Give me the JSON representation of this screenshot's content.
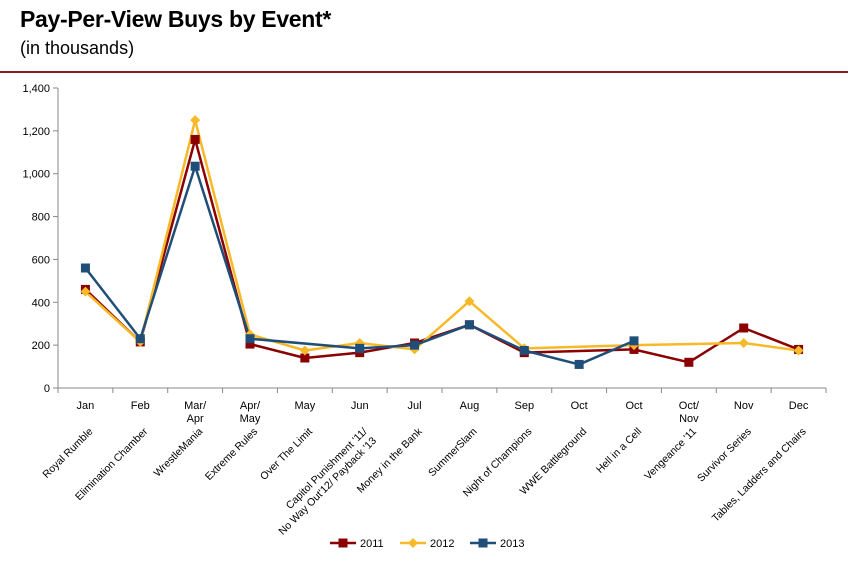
{
  "title": "Pay-Per-View Buys by Event*",
  "subtitle": "(in thousands)",
  "colors": {
    "2011": "#8b0000",
    "2012": "#f7b928",
    "2013": "#1f4e79",
    "rule": "#8b1a1a"
  },
  "chart_data": {
    "type": "line",
    "title": "Pay-Per-View Buys by Event*",
    "subtitle": "(in thousands)",
    "ylim": [
      0,
      1400
    ],
    "yticks": [
      "0",
      "200",
      "400",
      "600",
      "800",
      "1,000",
      "1,200",
      "1,400"
    ],
    "ytick_values": [
      0,
      200,
      400,
      600,
      800,
      1000,
      1200,
      1400
    ],
    "months": [
      [
        "Jan"
      ],
      [
        "Feb"
      ],
      [
        "Mar/",
        "Apr"
      ],
      [
        "Apr/",
        "May"
      ],
      [
        "May"
      ],
      [
        "Jun"
      ],
      [
        "Jul"
      ],
      [
        "Aug"
      ],
      [
        "Sep"
      ],
      [
        "Oct"
      ],
      [
        "Oct"
      ],
      [
        "Oct/",
        "Nov"
      ],
      [
        "Nov"
      ],
      [
        "Dec"
      ]
    ],
    "events": [
      [
        "Royal Rumble"
      ],
      [
        "Elimination Chamber"
      ],
      [
        "WrestleMania"
      ],
      [
        "Extreme Rules"
      ],
      [
        "Over The Limit"
      ],
      [
        "Capitol Punishment '11/",
        "No Way Out'12/ Payback '13"
      ],
      [
        "Money in the Bank"
      ],
      [
        "SummerSlam"
      ],
      [
        "Night of Champions"
      ],
      [
        "WWE Battleground"
      ],
      [
        "Hell in a Cell"
      ],
      [
        "Vengeance '11"
      ],
      [
        "Survivor Series"
      ],
      [
        "Tables, Ladders and Chairs"
      ]
    ],
    "series": [
      {
        "name": "2011",
        "marker": "square",
        "values": [
          460,
          215,
          1160,
          205,
          140,
          165,
          210,
          295,
          165,
          null,
          180,
          120,
          280,
          180
        ]
      },
      {
        "name": "2012",
        "marker": "diamond",
        "values": [
          450,
          215,
          1250,
          250,
          175,
          210,
          180,
          405,
          185,
          null,
          200,
          null,
          210,
          175
        ]
      },
      {
        "name": "2013",
        "marker": "square",
        "values": [
          560,
          230,
          1035,
          230,
          null,
          185,
          200,
          295,
          175,
          110,
          220,
          null,
          null,
          null
        ]
      }
    ],
    "grid": false,
    "legend": "bottom-center"
  }
}
